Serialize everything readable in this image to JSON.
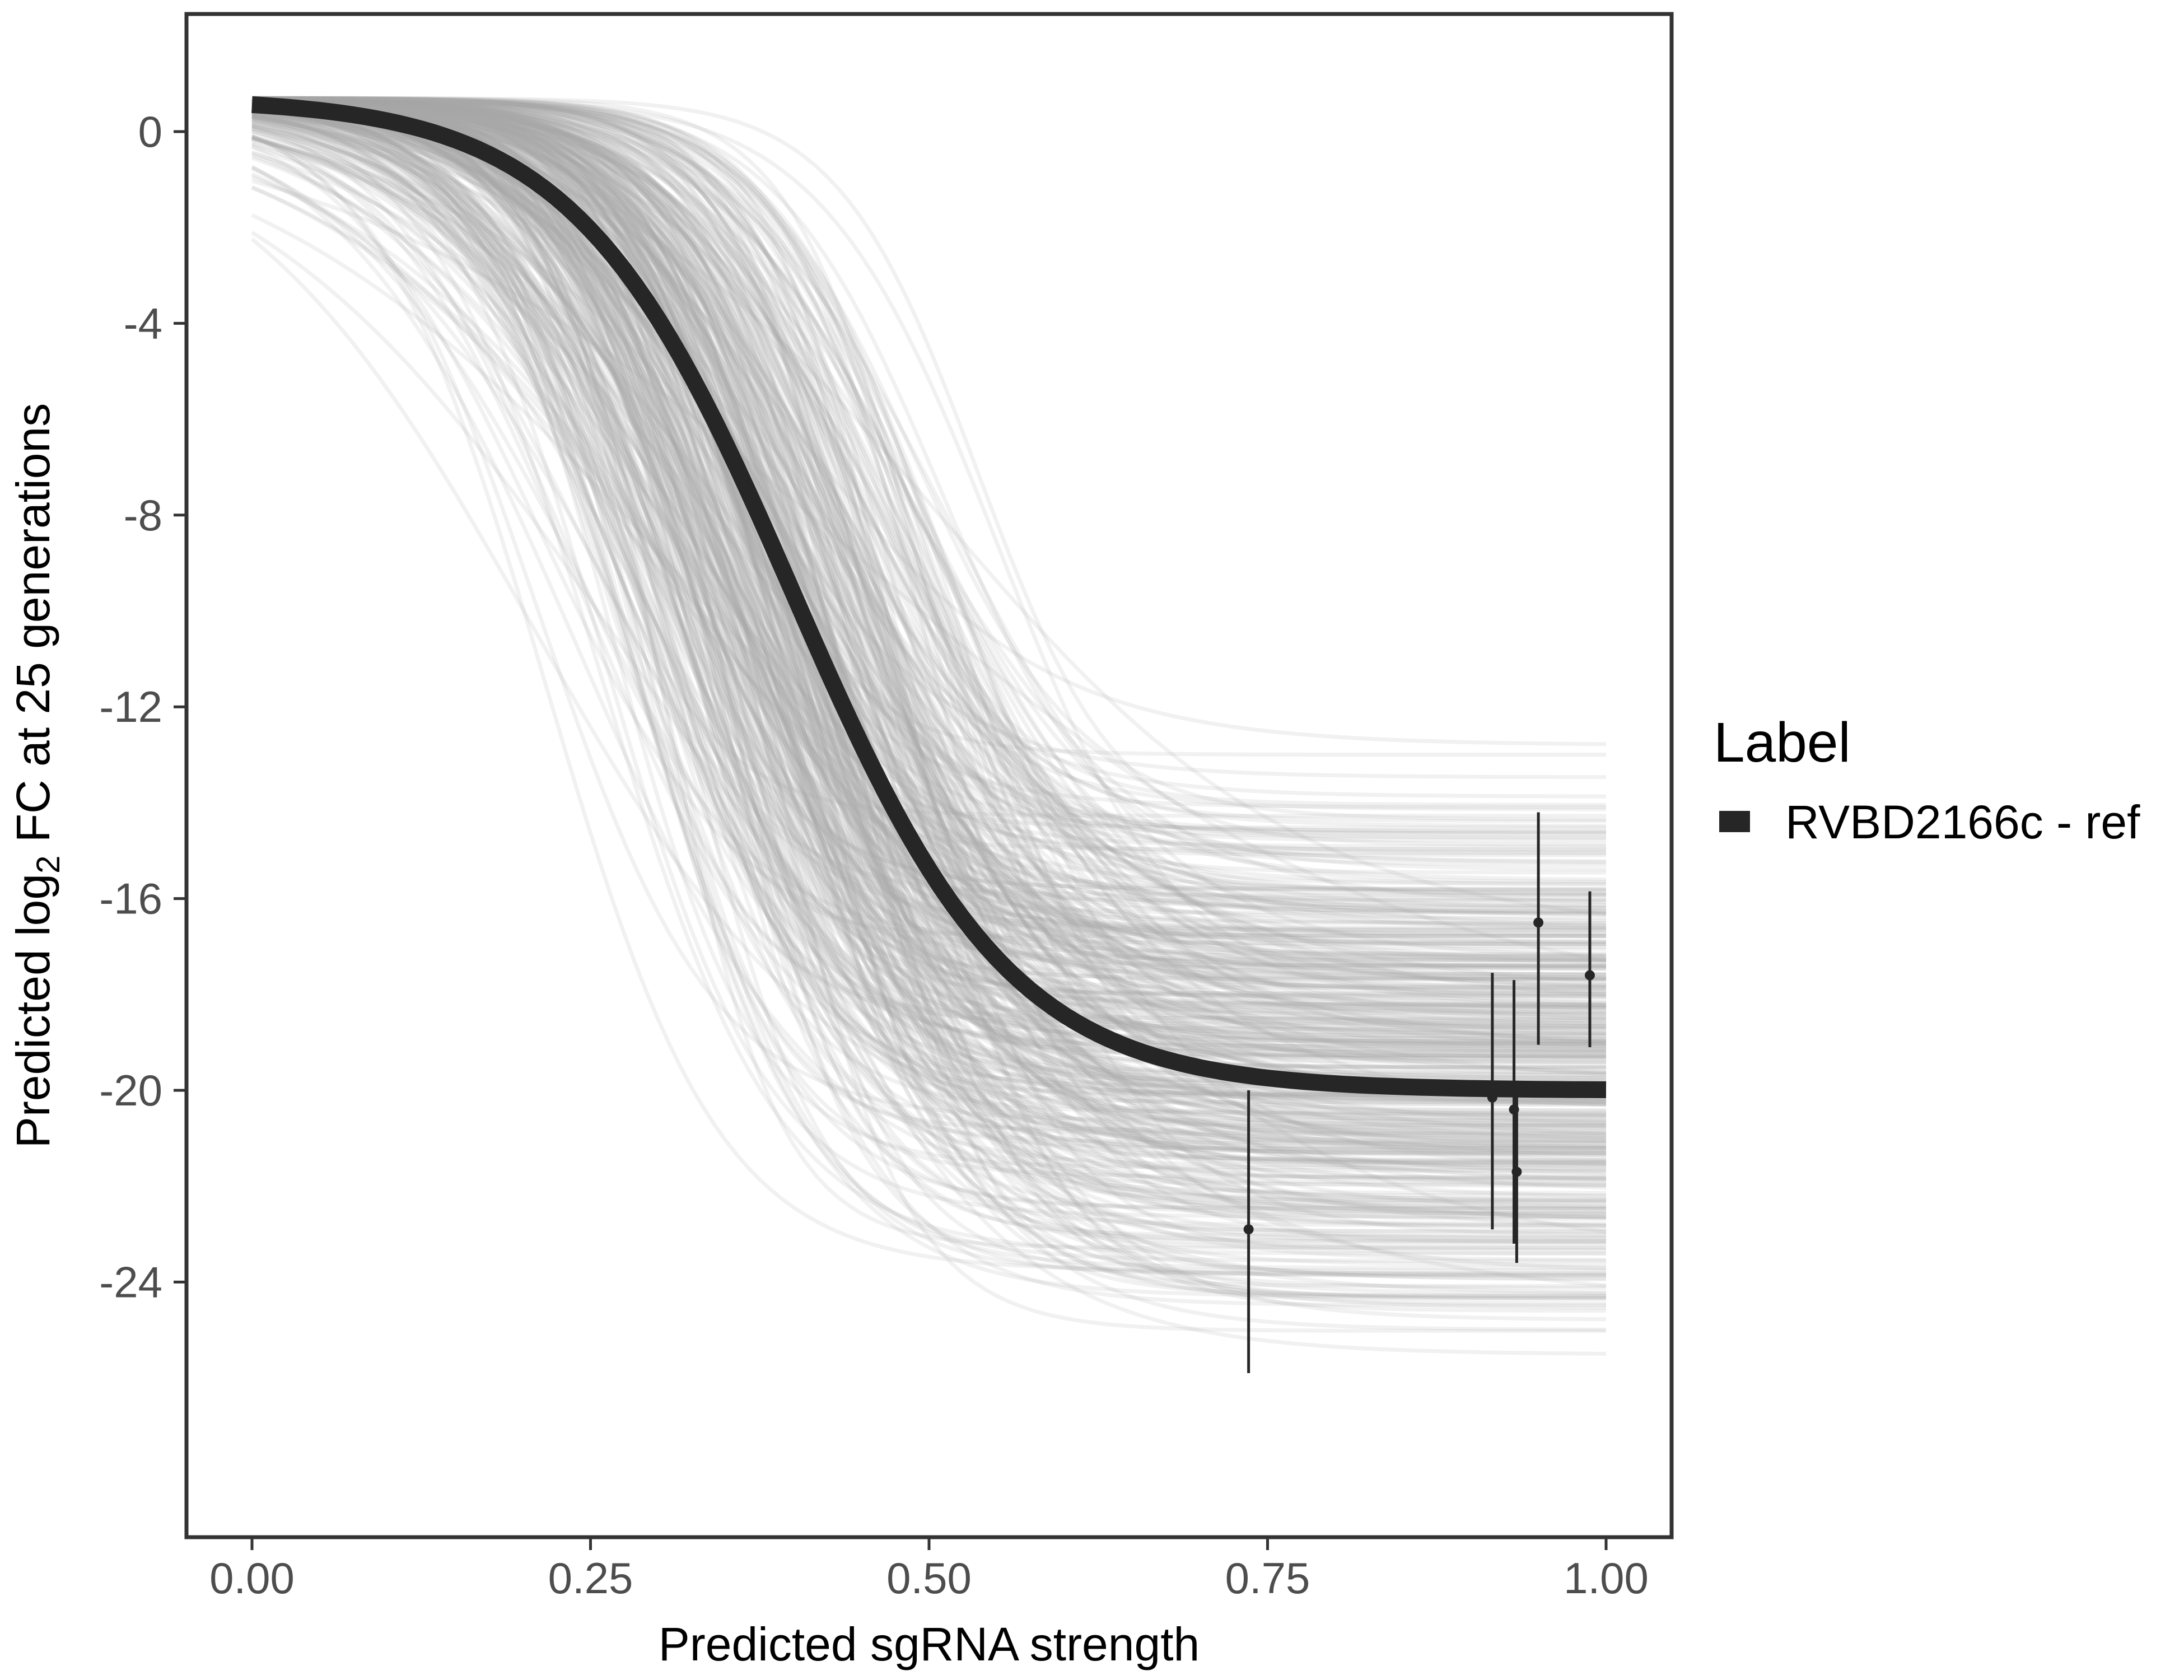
{
  "chart_data": {
    "type": "line",
    "title": "",
    "xlabel": "Predicted sgRNA strength",
    "ylabel": {
      "prefix": "Predicted  log",
      "subscript": "2",
      "suffix": " FC at 25 generations"
    },
    "xlim": [
      -0.05,
      1.05
    ],
    "ylim": [
      -30.0,
      2.5
    ],
    "x_ticks": [
      0,
      0.25,
      0.5,
      0.75,
      1
    ],
    "x_tick_labels": [
      "0.00",
      "0.25",
      "0.50",
      "0.75",
      "1.00"
    ],
    "y_ticks": [
      0,
      -4,
      -8,
      -12,
      -16,
      -20,
      -24
    ],
    "y_tick_labels": [
      "0",
      "-4",
      "-8",
      "-12",
      "-16",
      "-20",
      "-24"
    ],
    "grid": false,
    "legend": {
      "title": "Label",
      "position": "right",
      "entries": [
        "RVBD2166c - ref"
      ]
    },
    "reference_curve": {
      "name": "RVBD2166c - ref",
      "color": "#262626",
      "model": "logistic",
      "top": 0.7,
      "bottom": -20.0,
      "midpoint": 0.4,
      "slope": 12.5
    },
    "posterior_curves": {
      "color": "#a6a6a6",
      "count": 450,
      "top_range": [
        -12.8,
        0.7
      ],
      "bottom_range": [
        -27.5,
        -11.2
      ],
      "midpoint_range": [
        0.18,
        0.58
      ],
      "slope_range": [
        4,
        26
      ]
    },
    "points": [
      {
        "x": 0.736,
        "y": -22.9,
        "ymin": -25.9,
        "ymax": -20.0
      },
      {
        "x": 0.916,
        "y": -20.15,
        "ymin": -22.9,
        "ymax": -17.55
      },
      {
        "x": 0.932,
        "y": -20.4,
        "ymin": -23.2,
        "ymax": -17.7
      },
      {
        "x": 0.934,
        "y": -21.7,
        "ymin": -23.6,
        "ymax": -19.8
      },
      {
        "x": 0.95,
        "y": -16.5,
        "ymin": -19.05,
        "ymax": -14.2
      },
      {
        "x": 0.988,
        "y": -17.6,
        "ymin": -19.1,
        "ymax": -15.85
      }
    ]
  }
}
